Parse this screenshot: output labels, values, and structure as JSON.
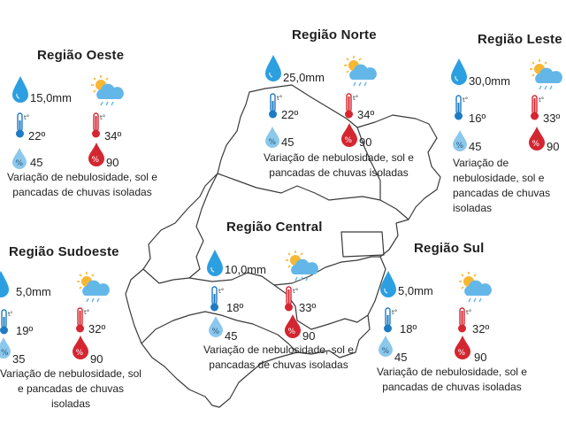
{
  "colors": {
    "drop_blue": "#2b9fe0",
    "therm_blue": "#1e7bc4",
    "therm_red": "#d72631",
    "humid_light": "#8cc8ec",
    "humid_red": "#d32630",
    "sun": "#f7b733",
    "cloud": "#63b7e8",
    "map_stroke": "#3a3a3a"
  },
  "icons": [
    "rain-drop-icon",
    "sun-cloud-rain-icon",
    "thermometer-min-icon",
    "thermometer-max-icon",
    "humidity-min-icon",
    "humidity-max-icon"
  ],
  "regions": {
    "oeste": {
      "title": "Região Oeste",
      "rain": "15,0mm",
      "tmin": "22º",
      "tmax": "34º",
      "hmin": "45",
      "hmax": "90",
      "description": "Variação de nebulosidade, sol e pancadas de chuvas isoladas"
    },
    "norte": {
      "title": "Região Norte",
      "rain": "25,0mm",
      "tmin": "22º",
      "tmax": "34º",
      "hmin": "45",
      "hmax": "90",
      "description": "Variação de nebulosidade, sol e pancadas de chuvas isoladas"
    },
    "leste": {
      "title": "Região Leste",
      "rain": "30,0mm",
      "tmin": "16º",
      "tmax": "33º",
      "hmin": "45",
      "hmax": "90",
      "description": "Variação de nebulosidade, sol e pancadas de chuvas isoladas"
    },
    "central": {
      "title": "Região Central",
      "rain": "10,0mm",
      "tmin": "18º",
      "tmax": "33º",
      "hmin": "45",
      "hmax": "90",
      "description": "Variação de nebulosidade, sol e pancadas de chuvas isoladas"
    },
    "sudoeste": {
      "title": "Região Sudoeste",
      "rain": "5,0mm",
      "tmin": "19º",
      "tmax": "32º",
      "hmin": "35",
      "hmax": "90",
      "description": "Variação de nebulosidade, sol e pancadas de chuvas isoladas"
    },
    "sul": {
      "title": "Região Sul",
      "rain": "5,0mm",
      "tmin": "18º",
      "tmax": "32º",
      "hmin": "45",
      "hmax": "90",
      "description": "Variação de nebulosidade, sol e pancadas de chuvas isoladas"
    }
  }
}
